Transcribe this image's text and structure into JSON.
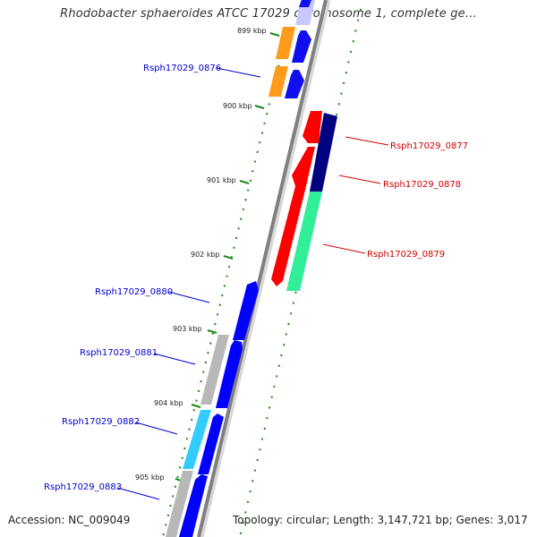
{
  "title": "Rhodobacter sphaeroides ATCC 17029 chromosome 1, complete ge...",
  "footer": {
    "accession": "Accession: NC_009049",
    "topology": "Topology: circular; Length: 3,147,721 bp; Genes: 3,017"
  },
  "colors": {
    "forward_label": "#0000cc",
    "reverse_label": "#cc0000",
    "tick": "#006400",
    "backbone": "#808080"
  },
  "ticks": [
    "899 kbp",
    "900 kbp",
    "901 kbp",
    "902 kbp",
    "903 kbp",
    "904 kbp",
    "905 kbp"
  ],
  "gene_labels": {
    "g0876": "Rsph17029_0876",
    "g0877": "Rsph17029_0877",
    "g0878": "Rsph17029_0878",
    "g0879": "Rsph17029_0879",
    "g0880": "Rsph17029_0880",
    "g0881": "Rsph17029_0881",
    "g0882": "Rsph17029_0882",
    "g0883": "Rsph17029_0883"
  }
}
